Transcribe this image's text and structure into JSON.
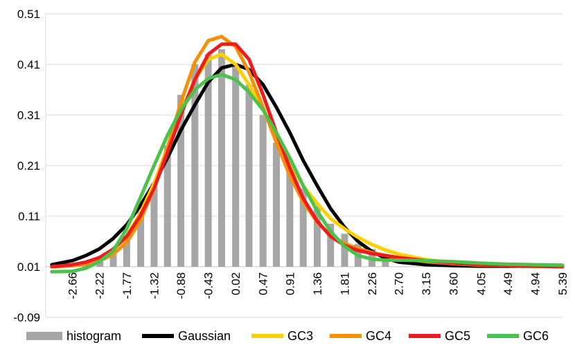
{
  "chart_data": {
    "type": "bar+line",
    "title": "",
    "xlabel": "",
    "ylabel": "",
    "ylim": [
      -0.09,
      0.51
    ],
    "y_ticks": [
      "0.51",
      "0.41",
      "0.31",
      "0.21",
      "0.11",
      "0.01",
      "-0.09"
    ],
    "y_tick_values": [
      0.51,
      0.41,
      0.31,
      0.21,
      0.11,
      0.01,
      -0.09
    ],
    "x_labels": [
      "-2.66",
      "-2.22",
      "-1.77",
      "-1.32",
      "-0.88",
      "-0.43",
      "0.02",
      "0.47",
      "0.91",
      "1.36",
      "1.81",
      "2.26",
      "2.70",
      "3.15",
      "3.60",
      "4.05",
      "4.49",
      "4.94",
      "5.39"
    ],
    "grid": "horizontal",
    "legend_position": "bottom",
    "histogram": {
      "name": "histogram",
      "color": "#a6a6a6",
      "x": [
        -2.44,
        -2.21,
        -1.99,
        -1.77,
        -1.54,
        -1.32,
        -1.1,
        -0.88,
        -0.65,
        -0.43,
        -0.21,
        0.02,
        0.24,
        0.47,
        0.69,
        0.91,
        1.13,
        1.36,
        1.58,
        1.81,
        2.03,
        2.26,
        2.48
      ],
      "values": [
        0.003,
        0.01,
        0.025,
        0.06,
        0.11,
        0.165,
        0.24,
        0.34,
        0.4,
        0.42,
        0.43,
        0.4,
        0.36,
        0.3,
        0.245,
        0.19,
        0.155,
        0.12,
        0.085,
        0.065,
        0.045,
        0.035,
        0.025
      ]
    },
    "series": [
      {
        "name": "Gaussian",
        "color": "#000000",
        "x": [
          -3.0,
          -2.66,
          -2.44,
          -2.22,
          -2.0,
          -1.77,
          -1.55,
          -1.32,
          -1.1,
          -0.88,
          -0.65,
          -0.43,
          -0.21,
          0.02,
          0.24,
          0.47,
          0.69,
          0.91,
          1.13,
          1.36,
          1.58,
          1.81,
          2.03,
          2.26,
          2.48,
          2.7,
          3.15,
          3.6,
          4.05,
          4.49,
          4.94,
          5.39
        ],
        "values": [
          0.004,
          0.012,
          0.022,
          0.035,
          0.055,
          0.083,
          0.12,
          0.165,
          0.215,
          0.27,
          0.32,
          0.365,
          0.393,
          0.4,
          0.39,
          0.36,
          0.315,
          0.265,
          0.21,
          0.16,
          0.115,
          0.078,
          0.05,
          0.03,
          0.017,
          0.009,
          0.004,
          0.002,
          0.001,
          0.001,
          0.001,
          0.001
        ]
      },
      {
        "name": "GC3",
        "color": "#ffd000",
        "x": [
          -3.0,
          -2.66,
          -2.44,
          -2.22,
          -2.0,
          -1.77,
          -1.55,
          -1.32,
          -1.1,
          -0.88,
          -0.65,
          -0.43,
          -0.21,
          0.02,
          0.24,
          0.47,
          0.69,
          0.91,
          1.13,
          1.36,
          1.58,
          1.81,
          2.03,
          2.26,
          2.48,
          2.7,
          3.15,
          3.6,
          4.05,
          4.49,
          4.94,
          5.39
        ],
        "values": [
          0.0,
          0.002,
          0.006,
          0.015,
          0.032,
          0.06,
          0.105,
          0.165,
          0.235,
          0.305,
          0.37,
          0.41,
          0.42,
          0.4,
          0.36,
          0.31,
          0.255,
          0.205,
          0.16,
          0.125,
          0.095,
          0.075,
          0.058,
          0.044,
          0.033,
          0.025,
          0.014,
          0.008,
          0.004,
          0.002,
          0.001,
          0.0
        ]
      },
      {
        "name": "GC4",
        "color": "#f5900a",
        "x": [
          -3.0,
          -2.66,
          -2.44,
          -2.22,
          -2.0,
          -1.77,
          -1.55,
          -1.32,
          -1.1,
          -0.88,
          -0.65,
          -0.43,
          -0.21,
          0.02,
          0.24,
          0.47,
          0.69,
          0.91,
          1.13,
          1.36,
          1.58,
          1.81,
          2.03,
          2.26,
          2.48,
          2.7,
          3.15,
          3.6,
          4.05,
          4.49,
          4.94,
          5.39
        ],
        "values": [
          0.0,
          0.002,
          0.005,
          0.011,
          0.024,
          0.048,
          0.09,
          0.155,
          0.235,
          0.325,
          0.405,
          0.447,
          0.455,
          0.435,
          0.385,
          0.315,
          0.245,
          0.18,
          0.128,
          0.088,
          0.062,
          0.046,
          0.036,
          0.028,
          0.022,
          0.017,
          0.01,
          0.006,
          0.003,
          0.002,
          0.001,
          0.0
        ]
      },
      {
        "name": "GC5",
        "color": "#ee1c1c",
        "x": [
          -3.0,
          -2.66,
          -2.44,
          -2.22,
          -2.0,
          -1.77,
          -1.55,
          -1.32,
          -1.1,
          -0.88,
          -0.65,
          -0.43,
          -0.21,
          0.02,
          0.24,
          0.47,
          0.69,
          0.91,
          1.13,
          1.36,
          1.58,
          1.81,
          2.03,
          2.26,
          2.48,
          2.7,
          3.15,
          3.6,
          4.05,
          4.49,
          4.94,
          5.39
        ],
        "values": [
          0.0,
          0.004,
          0.009,
          0.018,
          0.034,
          0.06,
          0.1,
          0.155,
          0.225,
          0.3,
          0.37,
          0.42,
          0.44,
          0.44,
          0.41,
          0.34,
          0.265,
          0.195,
          0.135,
          0.09,
          0.06,
          0.042,
          0.032,
          0.026,
          0.022,
          0.018,
          0.012,
          0.007,
          0.004,
          0.002,
          0.001,
          0.0
        ]
      },
      {
        "name": "GC6",
        "color": "#4cc24c",
        "x": [
          -3.0,
          -2.66,
          -2.44,
          -2.22,
          -2.0,
          -1.77,
          -1.55,
          -1.32,
          -1.1,
          -0.88,
          -0.65,
          -0.43,
          -0.21,
          0.02,
          0.24,
          0.47,
          0.69,
          0.91,
          1.13,
          1.36,
          1.58,
          1.81,
          2.03,
          2.26,
          2.48,
          2.7,
          3.15,
          3.6,
          4.05,
          4.49,
          4.94,
          5.39
        ],
        "values": [
          -0.01,
          -0.009,
          -0.003,
          0.01,
          0.03,
          0.075,
          0.135,
          0.2,
          0.26,
          0.31,
          0.35,
          0.372,
          0.38,
          0.37,
          0.345,
          0.31,
          0.265,
          0.215,
          0.16,
          0.11,
          0.07,
          0.04,
          0.022,
          0.015,
          0.013,
          0.013,
          0.012,
          0.01,
          0.007,
          0.005,
          0.004,
          0.003
        ]
      }
    ],
    "legend": [
      "histogram",
      "Gaussian",
      "GC3",
      "GC4",
      "GC5",
      "GC6"
    ]
  }
}
